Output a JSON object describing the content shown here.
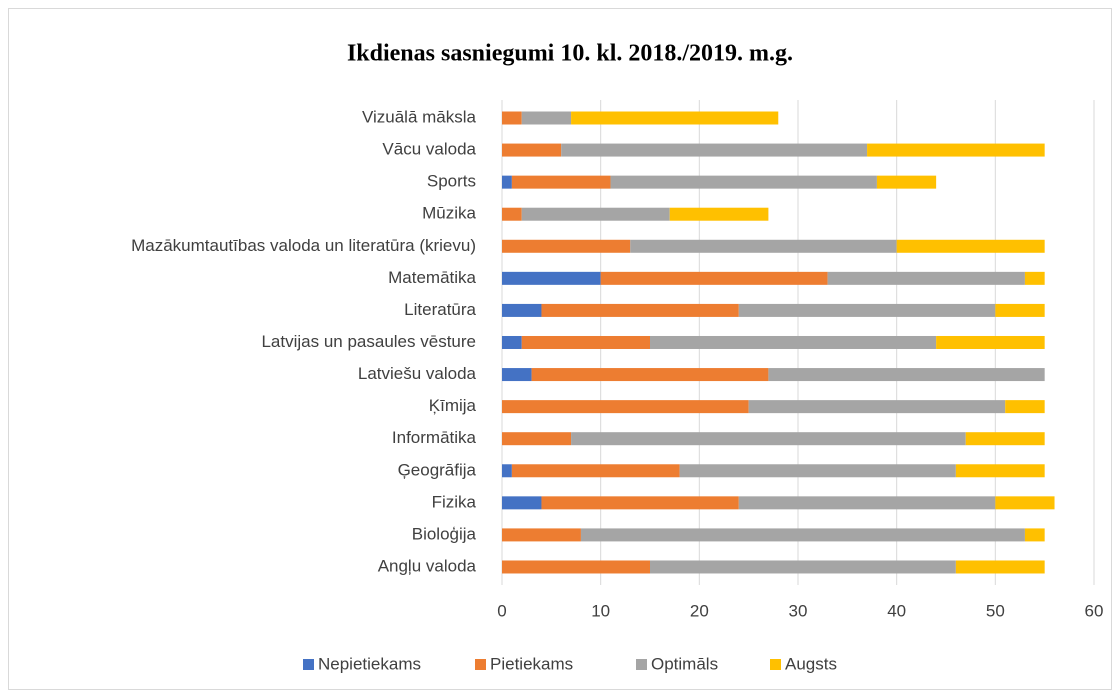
{
  "chart_data": {
    "type": "stacked_bar_horizontal",
    "title": "Ikdienas sasniegumi 10. kl. 2018./2019. m.g.",
    "categories": [
      "Angļu valoda",
      "Bioloģija",
      "Fizika",
      "Ģeogrāfija",
      "Informātika",
      "Ķīmija",
      "Latviešu valoda",
      "Latvijas un pasaules vēsture",
      "Literatūra",
      "Matemātika",
      "Mazākumtautības valoda un literatūra (krievu)",
      "Mūzika",
      "Sports",
      "Vācu valoda",
      "Vizuālā māksla"
    ],
    "series": [
      {
        "name": "Nepietiekams",
        "color": "#4472c4",
        "values": [
          0,
          0,
          4,
          1,
          0,
          0,
          3,
          2,
          4,
          10,
          0,
          0,
          1,
          0,
          0
        ]
      },
      {
        "name": "Pietiekams",
        "color": "#ed7d31",
        "values": [
          15,
          8,
          20,
          17,
          7,
          25,
          24,
          13,
          20,
          23,
          13,
          2,
          10,
          6,
          2
        ]
      },
      {
        "name": "Optimāls",
        "color": "#a5a5a5",
        "values": [
          31,
          45,
          26,
          28,
          40,
          26,
          28,
          29,
          26,
          20,
          27,
          15,
          27,
          31,
          5
        ]
      },
      {
        "name": "Augsts",
        "color": "#ffc000",
        "values": [
          9,
          2,
          6,
          9,
          8,
          4,
          0,
          11,
          5,
          2,
          15,
          10,
          6,
          18,
          21
        ]
      }
    ],
    "xlim": [
      0,
      60
    ],
    "xticks": [
      0,
      10,
      20,
      30,
      40,
      50,
      60
    ],
    "grid": true,
    "legend": "bottom"
  }
}
